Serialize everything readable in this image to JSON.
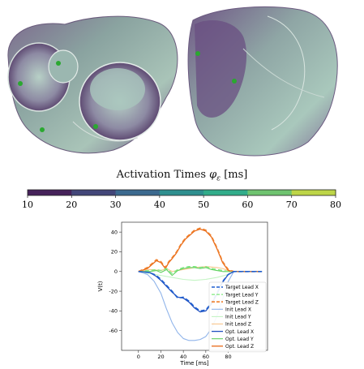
{
  "colorbar": {
    "title_text": "Activation Times ",
    "title_symbol": "φ",
    "title_subscript": "ε",
    "title_unit": " [ms]",
    "ticks": [
      "10",
      "20",
      "30",
      "40",
      "50",
      "60",
      "70",
      "80"
    ],
    "colors": [
      "#45225a",
      "#434679",
      "#3c6a8f",
      "#2f8f8f",
      "#32ac8a",
      "#6fc370",
      "#bdd548",
      "#f0e12a"
    ]
  },
  "chart_data": {
    "type": "line",
    "xlabel": "Time [ms]",
    "ylabel": "V(t)",
    "xlim": [
      -15,
      115
    ],
    "ylim": [
      -80,
      50
    ],
    "xticks": [
      0,
      20,
      40,
      60,
      80
    ],
    "yticks": [
      -60,
      -40,
      -20,
      0,
      20,
      40
    ],
    "legend_position": "lower-right",
    "series": [
      {
        "name": "Target Lead X",
        "color": "#1f5fd0",
        "dash": "5,3",
        "width": 1.6,
        "x": [
          0,
          10,
          16,
          20,
          25,
          30,
          35,
          40,
          45,
          50,
          55,
          60,
          65,
          70,
          75,
          80,
          85,
          90,
          110
        ],
        "y": [
          0,
          -1,
          -4,
          -8,
          -14,
          -20,
          -27,
          -26,
          -30,
          -36,
          -40,
          -39,
          -32,
          -22,
          -10,
          -3,
          0,
          0,
          0
        ]
      },
      {
        "name": "Target Lead Y",
        "color": "#7ee87e",
        "dash": "5,3",
        "width": 1.3,
        "x": [
          0,
          10,
          16,
          20,
          25,
          30,
          35,
          40,
          45,
          50,
          55,
          60,
          65,
          70,
          75,
          80,
          85,
          110
        ],
        "y": [
          0,
          1,
          2,
          1,
          3,
          -2,
          2,
          4,
          5,
          5,
          4,
          5,
          3,
          2,
          1,
          0,
          0,
          0
        ]
      },
      {
        "name": "Target Lead Z",
        "color": "#f07f2a",
        "dash": "5,3",
        "width": 1.6,
        "x": [
          0,
          8,
          12,
          16,
          20,
          24,
          27,
          30,
          34,
          38,
          42,
          46,
          50,
          55,
          60,
          65,
          70,
          75,
          80,
          85,
          110
        ],
        "y": [
          0,
          4,
          8,
          12,
          10,
          4,
          10,
          14,
          20,
          28,
          34,
          38,
          42,
          44,
          42,
          36,
          24,
          10,
          2,
          0,
          0
        ]
      },
      {
        "name": "Init Lead X",
        "color": "#90b4ea",
        "dash": "",
        "width": 1.1,
        "x": [
          0,
          8,
          14,
          20,
          25,
          30,
          35,
          40,
          45,
          50,
          55,
          60,
          65,
          70,
          75,
          80,
          85,
          110
        ],
        "y": [
          0,
          -3,
          -10,
          -22,
          -38,
          -52,
          -62,
          -68,
          -70,
          -70,
          -69,
          -66,
          -58,
          -45,
          -28,
          -10,
          0,
          0
        ]
      },
      {
        "name": "Init Lead Y",
        "color": "#c4f4c4",
        "dash": "",
        "width": 1.1,
        "x": [
          0,
          10,
          20,
          30,
          40,
          50,
          60,
          70,
          80,
          85,
          110
        ],
        "y": [
          0,
          -2,
          -4,
          -6,
          -8,
          -9,
          -8,
          -6,
          -3,
          0,
          0
        ]
      },
      {
        "name": "Init Lead Z",
        "color": "#f8c68c",
        "dash": "",
        "width": 1.1,
        "x": [
          0,
          10,
          20,
          25,
          30,
          40,
          50,
          60,
          70,
          75,
          80,
          85,
          110
        ],
        "y": [
          0,
          2,
          1,
          3,
          0,
          2,
          4,
          5,
          4,
          3,
          1,
          0,
          0
        ]
      },
      {
        "name": "Opt. Lead X",
        "color": "#2050c0",
        "dash": "",
        "width": 1.3,
        "x": [
          0,
          10,
          16,
          20,
          25,
          30,
          35,
          40,
          45,
          50,
          55,
          60,
          65,
          70,
          75,
          80,
          85,
          90,
          110
        ],
        "y": [
          0,
          -1,
          -5,
          -9,
          -15,
          -21,
          -26,
          -27,
          -31,
          -37,
          -41,
          -40,
          -33,
          -23,
          -11,
          -3,
          0,
          0,
          0
        ]
      },
      {
        "name": "Opt. Lead Y",
        "color": "#5fd05f",
        "dash": "",
        "width": 1.1,
        "x": [
          0,
          10,
          16,
          20,
          25,
          30,
          35,
          40,
          45,
          50,
          55,
          60,
          65,
          70,
          75,
          80,
          85,
          110
        ],
        "y": [
          0,
          0,
          1,
          -1,
          2,
          -4,
          1,
          3,
          4,
          4,
          3,
          4,
          2,
          1,
          0,
          0,
          0,
          0
        ]
      },
      {
        "name": "Opt. Lead Z",
        "color": "#e86a18",
        "dash": "",
        "width": 1.3,
        "x": [
          0,
          8,
          12,
          16,
          20,
          24,
          27,
          30,
          34,
          38,
          42,
          46,
          50,
          55,
          60,
          65,
          70,
          75,
          80,
          85,
          110
        ],
        "y": [
          0,
          3,
          7,
          11,
          9,
          3,
          9,
          13,
          19,
          27,
          33,
          37,
          41,
          43,
          41,
          35,
          23,
          9,
          1,
          0,
          0
        ]
      }
    ]
  }
}
